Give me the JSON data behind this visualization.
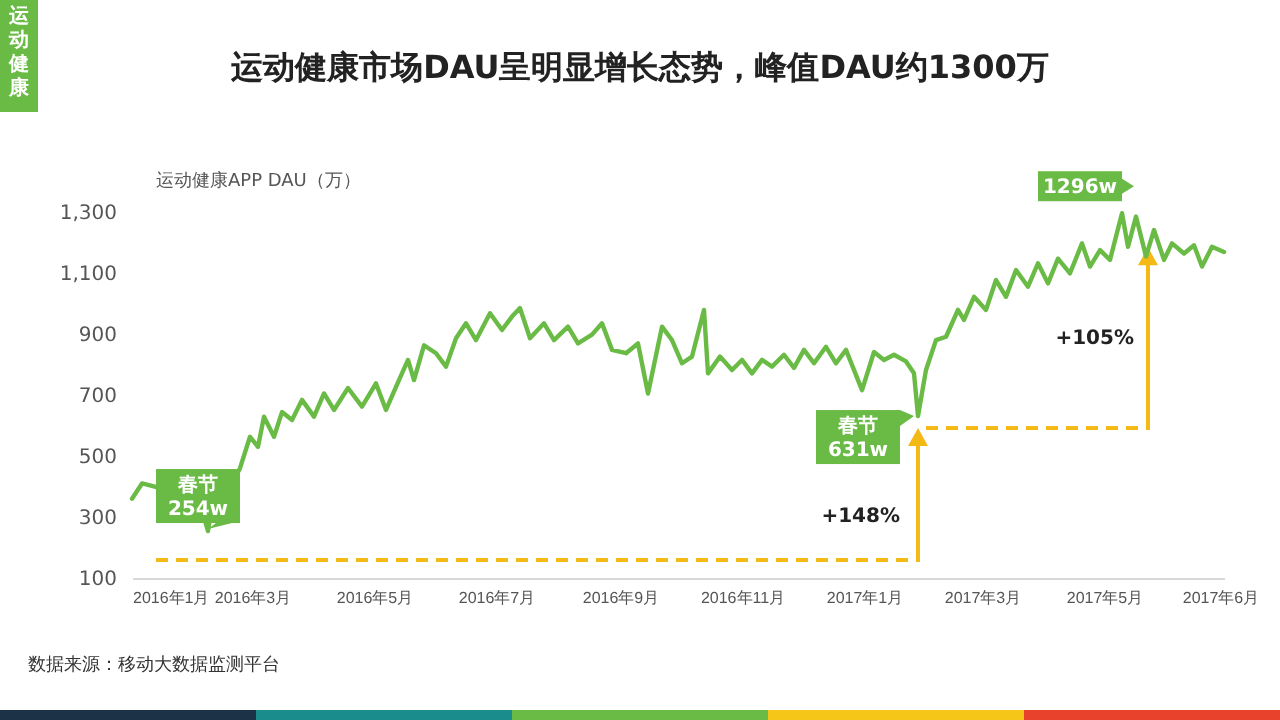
{
  "chart_data": {
    "type": "line",
    "title": "运动健康市场DAU呈明显增长态势，峰值DAU约1300万",
    "ylabel": "运动健康APP DAU（万）",
    "annotations": [
      "运动健康",
      {
        "text": "春节\n254w",
        "x": "2016-02-08",
        "y": 254
      },
      {
        "text": "春节\n631w",
        "x": "2017-01-28",
        "y": 631
      },
      {
        "text": "1296w",
        "x": "2017-05-10",
        "y": 1296
      },
      "+148%",
      "+105%",
      "数据来源：移动大数据监测平台"
    ],
    "x": [
      "2016-01-01",
      "2016-01-06",
      "2016-01-10",
      "2016-01-15",
      "2016-01-22",
      "2016-01-29",
      "2016-02-03",
      "2016-02-08",
      "2016-02-10",
      "2016-02-15",
      "2016-02-20",
      "2016-02-24",
      "2016-02-29",
      "2016-03-04",
      "2016-03-07",
      "2016-03-12",
      "2016-03-16",
      "2016-03-21",
      "2016-03-26",
      "2016-04-01",
      "2016-04-06",
      "2016-04-11",
      "2016-04-18",
      "2016-04-25",
      "2016-05-02",
      "2016-05-07",
      "2016-05-12",
      "2016-05-18",
      "2016-05-21",
      "2016-05-26",
      "2016-06-01",
      "2016-06-06",
      "2016-06-11",
      "2016-06-16",
      "2016-06-21",
      "2016-06-28",
      "2016-07-04",
      "2016-07-09",
      "2016-07-13",
      "2016-07-18",
      "2016-07-25",
      "2016-07-30",
      "2016-08-06",
      "2016-08-11",
      "2016-08-18",
      "2016-08-23",
      "2016-08-28",
      "2016-09-04",
      "2016-09-10",
      "2016-09-15",
      "2016-09-22",
      "2016-09-27",
      "2016-10-02",
      "2016-10-07",
      "2016-10-13",
      "2016-10-15",
      "2016-10-21",
      "2016-10-27",
      "2016-11-01",
      "2016-11-06",
      "2016-11-11",
      "2016-11-16",
      "2016-11-22",
      "2016-11-27",
      "2016-12-02",
      "2016-12-07",
      "2016-12-13",
      "2016-12-18",
      "2016-12-23",
      "2016-12-31",
      "2017-01-06",
      "2017-01-11",
      "2017-01-16",
      "2017-01-22",
      "2017-01-26",
      "2017-01-28",
      "2017-02-01",
      "2017-02-06",
      "2017-02-11",
      "2017-02-17",
      "2017-02-20",
      "2017-02-25",
      "2017-03-03",
      "2017-03-08",
      "2017-03-13",
      "2017-03-18",
      "2017-03-24",
      "2017-03-29",
      "2017-04-03",
      "2017-04-08",
      "2017-04-14",
      "2017-04-20",
      "2017-04-24",
      "2017-04-29",
      "2017-05-04",
      "2017-05-10",
      "2017-05-13",
      "2017-05-17",
      "2017-05-22",
      "2017-05-26",
      "2017-05-31",
      "2017-06-04",
      "2017-06-10",
      "2017-06-15",
      "2017-06-19",
      "2017-06-24",
      "2017-06-30"
    ],
    "series": [
      {
        "color": "#6abb45",
        "values": [
          360,
          410,
          404,
          395,
          410,
          378,
          367,
          254,
          338,
          356,
          410,
          460,
          563,
          530,
          629,
          563,
          644,
          618,
          684,
          629,
          705,
          651,
          723,
          662,
          738,
          651,
          727,
          815,
          749,
          863,
          837,
          793,
          886,
          935,
          880,
          968,
          913,
          957,
          985,
          886,
          935,
          880,
          924,
          869,
          898,
          935,
          848,
          837,
          869,
          705,
          924,
          880,
          804,
          826,
          979,
          771,
          826,
          782,
          815,
          771,
          815,
          793,
          832,
          789,
          848,
          804,
          858,
          804,
          848,
          716,
          841,
          815,
          832,
          810,
          771,
          631,
          782,
          880,
          891,
          979,
          946,
          1022,
          979,
          1077,
          1022,
          1110,
          1055,
          1132,
          1066,
          1147,
          1099,
          1197,
          1121,
          1175,
          1143,
          1296,
          1186,
          1285,
          1154,
          1241,
          1143,
          1197,
          1164,
          1191,
          1121,
          1186,
          1169
        ]
      }
    ],
    "xlim": [
      "2016-01-01",
      "2017-06-30"
    ],
    "xticks": [
      {
        "value": "2016-01-01",
        "label": "2016年1月"
      },
      {
        "value": "2016-03-01",
        "label": "2016年3月"
      },
      {
        "value": "2016-05-01",
        "label": "2016年5月"
      },
      {
        "value": "2016-07-01",
        "label": "2016年7月"
      },
      {
        "value": "2016-09-01",
        "label": "2016年9月"
      },
      {
        "value": "2016-11-01",
        "label": "2016年11月"
      },
      {
        "value": "2017-01-01",
        "label": "2017年1月"
      },
      {
        "value": "2017-03-01",
        "label": "2017年3月"
      },
      {
        "value": "2017-05-01",
        "label": "2017年5月"
      },
      {
        "value": "2017-06-28",
        "label": "2017年6月"
      }
    ],
    "ylim": [
      100,
      1300
    ],
    "yticks": [
      100,
      300,
      500,
      700,
      900,
      {
        "value": 1100,
        "label": "1,100"
      },
      {
        "value": 1300,
        "label": "1,300"
      }
    ]
  }
}
